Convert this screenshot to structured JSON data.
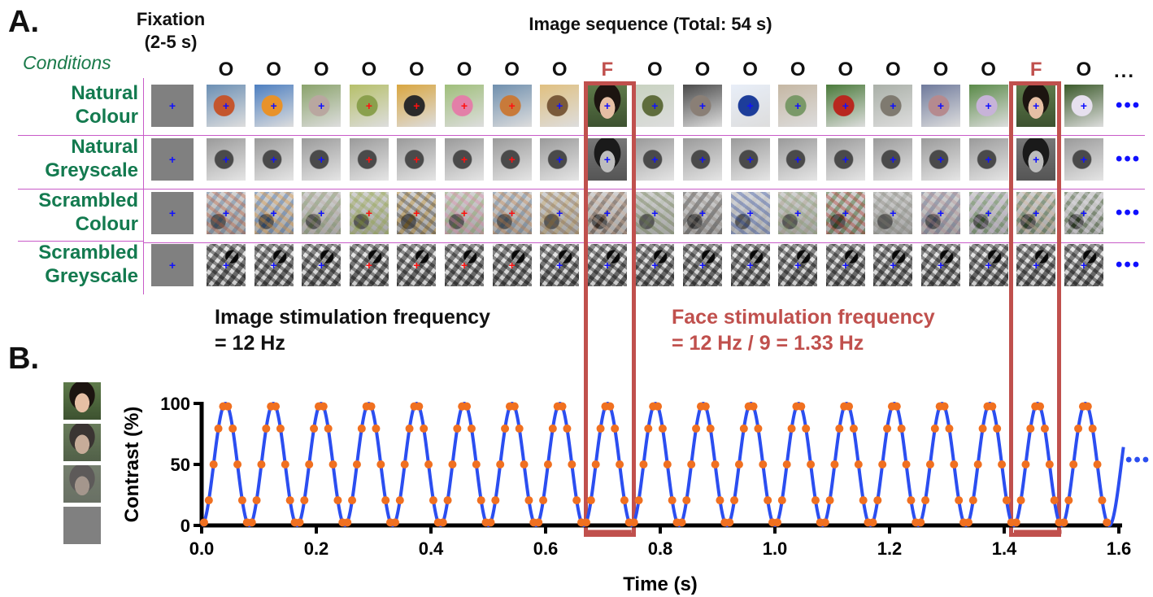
{
  "panel_a": {
    "letter": "A.",
    "fixation_label": "Fixation\n(2-5 s)",
    "sequence_title": "Image sequence (Total: 54 s)",
    "conditions_header": "Conditions",
    "sequence_letters": [
      "O",
      "O",
      "O",
      "O",
      "O",
      "O",
      "O",
      "O",
      "F",
      "O",
      "O",
      "O",
      "O",
      "O",
      "O",
      "O",
      "O",
      "F",
      "O"
    ],
    "ellipsis": "...",
    "row_ellipsis": "•••",
    "conditions": [
      {
        "label": "Natural\nColour",
        "kind": "nat-col"
      },
      {
        "label": "Natural\nGreyscale",
        "kind": "nat-grey"
      },
      {
        "label": "Scrambled\nColour",
        "kind": "scr-col"
      },
      {
        "label": "Scrambled\nGreyscale",
        "kind": "scr-grey"
      }
    ],
    "image_stim_freq": "Image stimulation frequency\n= 12 Hz",
    "face_stim_freq": "Face stimulation frequency\n= 12 Hz / 9 = 1.33 Hz",
    "colors": {
      "condition_text": "#137a4f",
      "face_highlight": "#c0504d",
      "divider": "#c85bc8",
      "fixation_cross": "#1010ff"
    }
  },
  "panel_b": {
    "letter": "B.",
    "ellipsis": "•••"
  },
  "chart_data": {
    "type": "line",
    "title": "",
    "xlabel": "Time (s)",
    "ylabel": "Contrast (%)",
    "xlim": [
      0,
      1.6
    ],
    "ylim": [
      0,
      100
    ],
    "xticks": [
      "0.0",
      "0.2",
      "0.4",
      "0.6",
      "0.8",
      "1.0",
      "1.2",
      "1.4",
      "1.6"
    ],
    "yticks": [
      "0",
      "50",
      "100"
    ],
    "stimulation_frequency_hz": 12,
    "series": [
      {
        "color": "#2b4ef0",
        "style": "sinusoid 0-100% at 12 Hz"
      }
    ],
    "sample_points_color": "#f07020",
    "samples_per_cycle": 10,
    "face_windows_s": [
      [
        0.667,
        0.75
      ],
      [
        1.417,
        1.5
      ]
    ]
  }
}
